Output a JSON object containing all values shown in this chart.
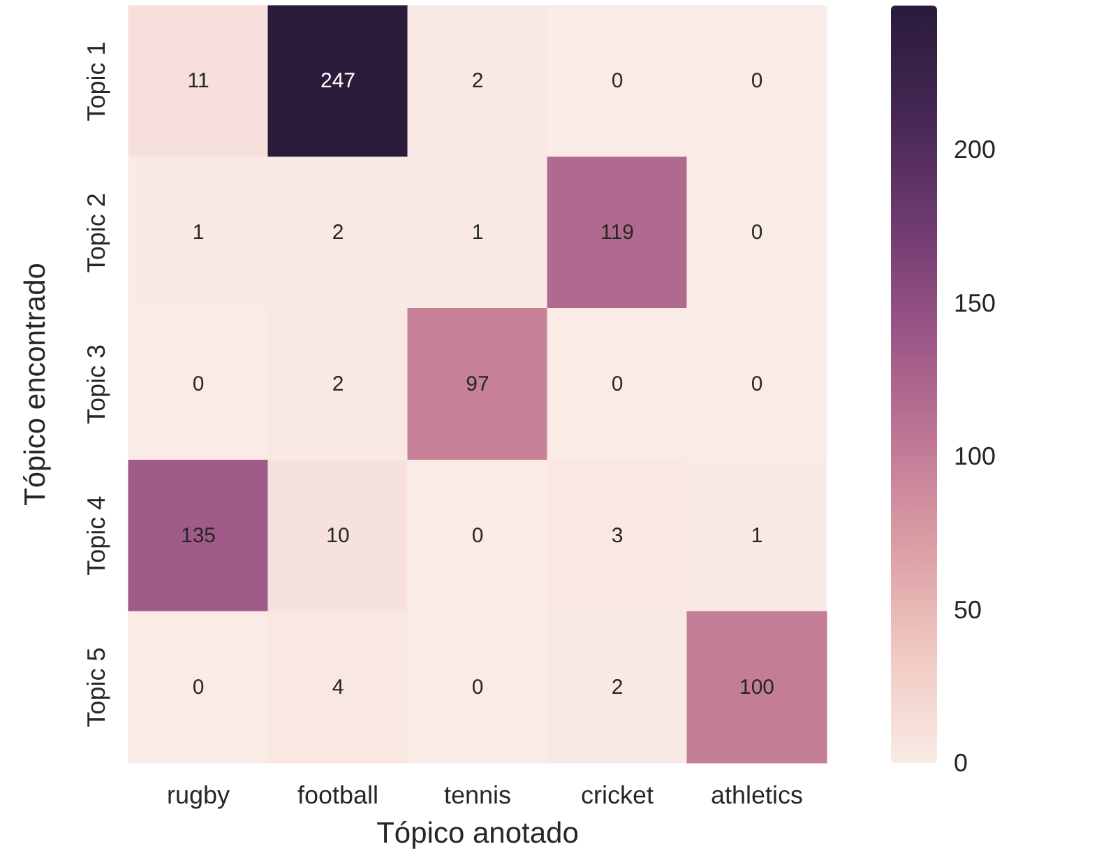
{
  "chart_data": {
    "type": "heatmap",
    "xlabel": "Tópico anotado",
    "ylabel": "Tópico encontrado",
    "categories": [
      "rugby",
      "football",
      "tennis",
      "cricket",
      "athletics"
    ],
    "y_categories": [
      "Topic 1",
      "Topic 2",
      "Topic 3",
      "Topic 4",
      "Topic 5"
    ],
    "cells": [
      [
        11,
        247,
        2,
        0,
        0
      ],
      [
        1,
        2,
        1,
        119,
        0
      ],
      [
        0,
        2,
        97,
        0,
        0
      ],
      [
        135,
        10,
        0,
        3,
        1
      ],
      [
        0,
        4,
        0,
        2,
        100
      ]
    ],
    "clim": [
      0,
      247
    ],
    "cticks": [
      0,
      50,
      100,
      150,
      200
    ],
    "data_labels": true
  }
}
